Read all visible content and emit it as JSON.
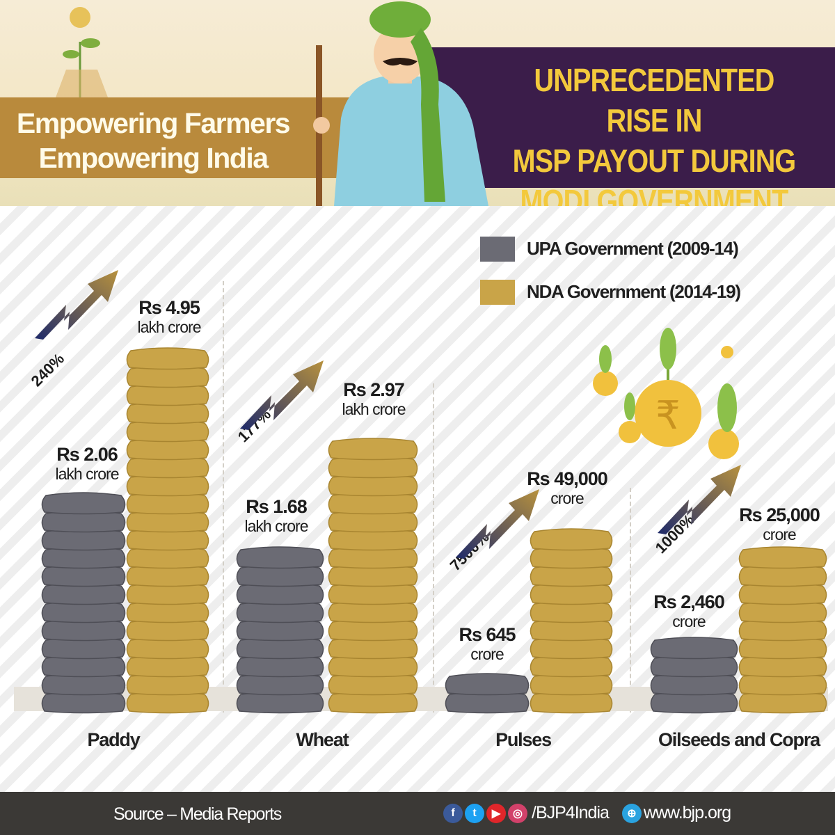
{
  "header": {
    "left_title_line1": "Empowering Farmers",
    "left_title_line2": "Empowering India",
    "right_title_line1": "UNPRECEDENTED RISE IN",
    "right_title_line2": "MSP PAYOUT DURING",
    "right_title_line3": "MODI GOVERNMENT"
  },
  "legend": [
    {
      "label": "UPA Government (2009-14)",
      "color": "#6b6b74"
    },
    {
      "label": "NDA Government (2014-19)",
      "color": "#c9a448"
    }
  ],
  "chart_data": {
    "type": "bar",
    "title": "UNPRECEDENTED RISE IN MSP PAYOUT DURING MODI GOVERNMENT",
    "categories": [
      "Paddy",
      "Wheat",
      "Pulses",
      "Oilseeds and Copra"
    ],
    "unit": "Rs crore",
    "series": [
      {
        "name": "UPA Government (2009-14)",
        "values": [
          206000,
          168000,
          645,
          2460
        ]
      },
      {
        "name": "NDA Government (2014-19)",
        "values": [
          495000,
          297000,
          49000,
          25000
        ]
      }
    ],
    "labels": [
      {
        "upa_amount": "Rs 2.06",
        "upa_unit": "lakh crore",
        "nda_amount": "Rs 4.95",
        "nda_unit": "lakh crore",
        "increase": "240%"
      },
      {
        "upa_amount": "Rs 1.68",
        "upa_unit": "lakh crore",
        "nda_amount": "Rs 2.97",
        "nda_unit": "lakh crore",
        "increase": "177%"
      },
      {
        "upa_amount": "Rs 645",
        "upa_unit": "crore",
        "nda_amount": "Rs 49,000",
        "nda_unit": "crore",
        "increase": "7500%"
      },
      {
        "upa_amount": "Rs 2,460",
        "upa_unit": "crore",
        "nda_amount": "Rs 25,000",
        "nda_unit": "crore",
        "increase": "1000%"
      }
    ],
    "legend_position": "top-right",
    "grid": false
  },
  "footer": {
    "source": "Source – Media Reports",
    "handle": "/BJP4India",
    "website": "www.bjp.org",
    "social_icons": [
      "facebook-icon",
      "twitter-icon",
      "youtube-icon",
      "instagram-icon"
    ]
  }
}
